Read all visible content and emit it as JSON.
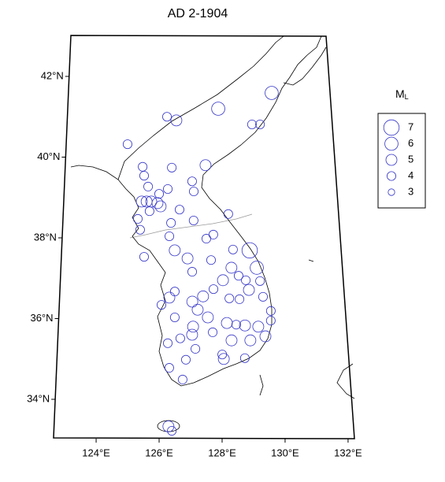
{
  "chart_data": {
    "type": "map",
    "title": "AD 2-1904",
    "x": [
      129.88,
      127.93,
      126.08,
      126.42,
      124.69,
      129.14,
      129.43,
      125.25,
      125.31,
      126.28,
      127.47,
      127.0,
      127.06,
      125.46,
      126.15,
      125.85,
      125.25,
      125.42,
      125.58,
      125.8,
      125.91,
      125.53,
      126.57,
      125.13,
      125.22,
      126.28,
      127.06,
      128.26,
      126.23,
      127.5,
      128.98,
      128.41,
      126.42,
      126.86,
      127.66,
      128.35,
      129.21,
      128.59,
      129.31,
      127.02,
      128.06,
      128.83,
      127.74,
      128.93,
      129.4,
      126.26,
      127.03,
      127.21,
      128.27,
      128.61,
      129.65,
      126.45,
      127.55,
      128.18,
      128.49,
      128.78,
      129.22,
      127.06,
      127.71,
      129.45,
      129.64,
      126.64,
      127.03,
      128.33,
      128.95,
      127.14,
      128.02,
      126.23,
      126.83,
      128.07,
      128.76,
      126.29,
      126.73,
      126.29,
      126.4,
      127.74,
      126.44,
      127.39,
      126.0,
      125.38
    ],
    "y": [
      41.59,
      41.2,
      41.0,
      40.91,
      40.32,
      40.81,
      40.81,
      39.76,
      39.54,
      39.74,
      39.8,
      39.4,
      39.15,
      39.27,
      39.21,
      39.09,
      38.9,
      38.9,
      38.9,
      38.86,
      38.78,
      38.66,
      38.7,
      38.47,
      38.2,
      38.37,
      38.43,
      38.59,
      38.04,
      37.98,
      37.69,
      37.71,
      37.69,
      37.49,
      37.45,
      37.26,
      37.26,
      37.06,
      36.93,
      37.16,
      36.95,
      36.95,
      36.73,
      36.71,
      36.54,
      36.52,
      36.42,
      36.22,
      36.5,
      36.48,
      36.19,
      36.03,
      36.03,
      35.89,
      35.85,
      35.83,
      35.8,
      35.8,
      35.66,
      35.56,
      35.95,
      35.51,
      35.6,
      35.46,
      35.46,
      35.25,
      35.11,
      35.39,
      34.98,
      35.0,
      35.02,
      34.78,
      34.49,
      33.33,
      33.22,
      38.08,
      36.67,
      36.55,
      36.34,
      37.53
    ],
    "size": [
      6,
      6,
      4,
      5,
      4,
      4,
      4,
      4,
      4,
      4,
      5,
      4,
      4,
      4,
      4,
      4,
      5,
      5,
      5,
      5,
      5,
      4,
      4,
      4,
      4,
      4,
      4,
      4,
      4,
      4,
      7,
      4,
      5,
      5,
      4,
      5,
      6,
      4,
      4,
      4,
      5,
      4,
      4,
      5,
      4,
      5,
      5,
      5,
      4,
      4,
      4,
      4,
      5,
      5,
      4,
      5,
      5,
      5,
      4,
      5,
      4,
      4,
      5,
      5,
      5,
      4,
      4,
      4,
      4,
      5,
      4,
      4,
      4,
      5,
      4,
      4,
      4,
      5,
      4,
      4
    ],
    "color": "#3535c8",
    "xticks": [
      {
        "value": 124,
        "label": "124°E"
      },
      {
        "value": 126,
        "label": "126°E"
      },
      {
        "value": 128,
        "label": "128°E"
      },
      {
        "value": 130,
        "label": "130°E"
      },
      {
        "value": 132,
        "label": "132°E"
      }
    ],
    "yticks": [
      {
        "value": 34,
        "label": "34°N"
      },
      {
        "value": 36,
        "label": "36°N"
      },
      {
        "value": 38,
        "label": "38°N"
      },
      {
        "value": 40,
        "label": "40°N"
      },
      {
        "value": 42,
        "label": "42°N"
      }
    ],
    "legend": {
      "title": "M",
      "title_sub": "L",
      "values": [
        7,
        6,
        5,
        4,
        3
      ]
    }
  }
}
